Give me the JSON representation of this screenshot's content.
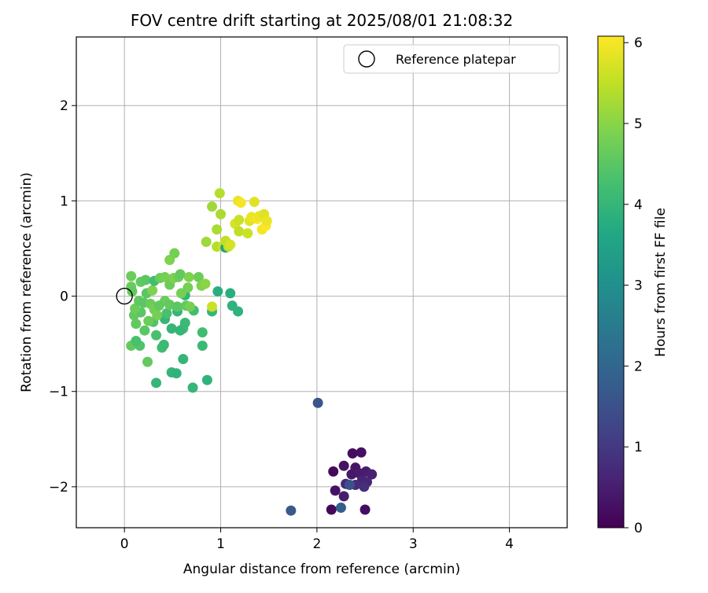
{
  "chart_data": {
    "type": "scatter",
    "title": "FOV centre drift starting at 2025/08/01 21:08:32",
    "xlabel": "Angular distance from reference (arcmin)",
    "ylabel": "Rotation from reference (arcmin)",
    "xlim": [
      -0.5,
      4.6
    ],
    "ylim": [
      -2.43,
      2.72
    ],
    "xticks": [
      0,
      1,
      2,
      3,
      4
    ],
    "yticks": [
      -2,
      -1,
      0,
      1,
      2
    ],
    "grid": true,
    "legend": {
      "position": "top-right",
      "entries": [
        "Reference platepar"
      ]
    },
    "reference_point": {
      "x": 0,
      "y": 0,
      "label": "Reference platepar"
    },
    "colorbar": {
      "label": "Hours from first FF file",
      "colormap": "viridis",
      "range": [
        0,
        6.08
      ],
      "ticks": [
        0,
        1,
        2,
        3,
        4,
        5,
        6
      ]
    },
    "points": [
      {
        "x": 2.37,
        "y": -1.65,
        "c": 0.2
      },
      {
        "x": 2.46,
        "y": -1.64,
        "c": 0.25
      },
      {
        "x": 2.28,
        "y": -1.78,
        "c": 0.3
      },
      {
        "x": 2.4,
        "y": -1.8,
        "c": 0.35
      },
      {
        "x": 2.17,
        "y": -1.84,
        "c": 0.15
      },
      {
        "x": 2.36,
        "y": -1.87,
        "c": 0.4
      },
      {
        "x": 2.44,
        "y": -1.86,
        "c": 0.45
      },
      {
        "x": 2.51,
        "y": -1.84,
        "c": 0.5
      },
      {
        "x": 2.57,
        "y": -1.87,
        "c": 0.55
      },
      {
        "x": 2.47,
        "y": -1.93,
        "c": 0.6
      },
      {
        "x": 2.52,
        "y": -1.95,
        "c": 0.65
      },
      {
        "x": 2.3,
        "y": -1.97,
        "c": 0.7
      },
      {
        "x": 2.4,
        "y": -1.98,
        "c": 0.75
      },
      {
        "x": 2.49,
        "y": -2.0,
        "c": 0.8
      },
      {
        "x": 2.19,
        "y": -2.04,
        "c": 0.3
      },
      {
        "x": 2.28,
        "y": -2.1,
        "c": 0.5
      },
      {
        "x": 2.15,
        "y": -2.24,
        "c": 0.1
      },
      {
        "x": 2.5,
        "y": -2.24,
        "c": 0.2
      },
      {
        "x": 2.34,
        "y": -1.98,
        "c": 1.5
      },
      {
        "x": 2.25,
        "y": -2.22,
        "c": 1.8
      },
      {
        "x": 2.01,
        "y": -1.12,
        "c": 1.6
      },
      {
        "x": 1.73,
        "y": -2.25,
        "c": 1.7
      },
      {
        "x": 0.33,
        "y": -0.91,
        "c": 4.0
      },
      {
        "x": 0.71,
        "y": -0.96,
        "c": 4.0
      },
      {
        "x": 0.86,
        "y": -0.88,
        "c": 3.9
      },
      {
        "x": 0.49,
        "y": -0.8,
        "c": 4.0
      },
      {
        "x": 0.54,
        "y": -0.81,
        "c": 3.9
      },
      {
        "x": 0.61,
        "y": -0.66,
        "c": 4.0
      },
      {
        "x": 0.24,
        "y": -0.69,
        "c": 4.6
      },
      {
        "x": 0.07,
        "y": -0.52,
        "c": 4.6
      },
      {
        "x": 0.16,
        "y": -0.52,
        "c": 4.4
      },
      {
        "x": 0.12,
        "y": -0.47,
        "c": 4.3
      },
      {
        "x": 0.39,
        "y": -0.54,
        "c": 4.2
      },
      {
        "x": 0.41,
        "y": -0.51,
        "c": 4.1
      },
      {
        "x": 0.81,
        "y": -0.52,
        "c": 4.1
      },
      {
        "x": 0.81,
        "y": -0.38,
        "c": 4.2
      },
      {
        "x": 0.33,
        "y": -0.41,
        "c": 4.3
      },
      {
        "x": 0.21,
        "y": -0.36,
        "c": 4.5
      },
      {
        "x": 0.61,
        "y": -0.34,
        "c": 4.2
      },
      {
        "x": 0.49,
        "y": -0.34,
        "c": 4.0
      },
      {
        "x": 0.58,
        "y": -0.36,
        "c": 4.0
      },
      {
        "x": 0.63,
        "y": -0.28,
        "c": 4.1
      },
      {
        "x": 0.42,
        "y": -0.24,
        "c": 4.0
      },
      {
        "x": 0.3,
        "y": -0.27,
        "c": 4.4
      },
      {
        "x": 0.25,
        "y": -0.26,
        "c": 4.7
      },
      {
        "x": 0.12,
        "y": -0.29,
        "c": 4.6
      },
      {
        "x": 0.1,
        "y": -0.2,
        "c": 4.6
      },
      {
        "x": 0.17,
        "y": -0.17,
        "c": 4.5
      },
      {
        "x": 0.34,
        "y": -0.2,
        "c": 4.8
      },
      {
        "x": 0.44,
        "y": -0.18,
        "c": 4.3
      },
      {
        "x": 0.55,
        "y": -0.16,
        "c": 4.0
      },
      {
        "x": 0.72,
        "y": -0.15,
        "c": 4.2
      },
      {
        "x": 0.91,
        "y": -0.16,
        "c": 4.0
      },
      {
        "x": 1.18,
        "y": -0.16,
        "c": 3.9
      },
      {
        "x": 1.12,
        "y": -0.1,
        "c": 3.9
      },
      {
        "x": 0.97,
        "y": 0.05,
        "c": 3.8
      },
      {
        "x": 1.1,
        "y": 0.03,
        "c": 3.8
      },
      {
        "x": 0.63,
        "y": 0.01,
        "c": 4.0
      },
      {
        "x": 0.59,
        "y": 0.03,
        "c": 4.8
      },
      {
        "x": 0.42,
        "y": -0.05,
        "c": 4.7
      },
      {
        "x": 0.47,
        "y": -0.09,
        "c": 4.6
      },
      {
        "x": 0.55,
        "y": -0.11,
        "c": 4.5
      },
      {
        "x": 0.64,
        "y": -0.1,
        "c": 4.6
      },
      {
        "x": 0.68,
        "y": -0.11,
        "c": 4.8
      },
      {
        "x": 0.11,
        "y": -0.13,
        "c": 4.7
      },
      {
        "x": 0.15,
        "y": -0.05,
        "c": 4.6
      },
      {
        "x": 0.2,
        "y": -0.07,
        "c": 4.5
      },
      {
        "x": 0.27,
        "y": -0.08,
        "c": 4.7
      },
      {
        "x": 0.31,
        "y": -0.14,
        "c": 4.8
      },
      {
        "x": 0.36,
        "y": -0.1,
        "c": 4.6
      },
      {
        "x": 0.23,
        "y": 0.03,
        "c": 4.5
      },
      {
        "x": 0.29,
        "y": 0.06,
        "c": 4.9
      },
      {
        "x": 0.07,
        "y": 0.1,
        "c": 4.7
      },
      {
        "x": 0.08,
        "y": 0.05,
        "c": 4.6
      },
      {
        "x": 0.07,
        "y": 0.21,
        "c": 4.7
      },
      {
        "x": 0.17,
        "y": 0.15,
        "c": 4.6
      },
      {
        "x": 0.22,
        "y": 0.17,
        "c": 4.5
      },
      {
        "x": 0.31,
        "y": 0.16,
        "c": 4.2
      },
      {
        "x": 0.37,
        "y": 0.19,
        "c": 4.7
      },
      {
        "x": 0.42,
        "y": 0.2,
        "c": 4.8
      },
      {
        "x": 0.47,
        "y": 0.12,
        "c": 4.7
      },
      {
        "x": 0.51,
        "y": 0.19,
        "c": 4.9
      },
      {
        "x": 0.56,
        "y": 0.2,
        "c": 4.7
      },
      {
        "x": 0.58,
        "y": 0.23,
        "c": 4.6
      },
      {
        "x": 0.66,
        "y": 0.09,
        "c": 4.8
      },
      {
        "x": 0.67,
        "y": 0.2,
        "c": 4.9
      },
      {
        "x": 0.77,
        "y": 0.2,
        "c": 4.7
      },
      {
        "x": 0.8,
        "y": 0.11,
        "c": 4.9
      },
      {
        "x": 0.84,
        "y": 0.13,
        "c": 5.0
      },
      {
        "x": 0.47,
        "y": 0.38,
        "c": 4.9
      },
      {
        "x": 0.52,
        "y": 0.45,
        "c": 4.8
      },
      {
        "x": 0.91,
        "y": -0.11,
        "c": 5.6
      },
      {
        "x": 0.85,
        "y": 0.57,
        "c": 5.2
      },
      {
        "x": 0.96,
        "y": 0.52,
        "c": 5.4
      },
      {
        "x": 0.96,
        "y": 0.7,
        "c": 5.3
      },
      {
        "x": 1.02,
        "y": 0.52,
        "c": 5.6
      },
      {
        "x": 1.05,
        "y": 0.51,
        "c": 3.5
      },
      {
        "x": 1.08,
        "y": 0.52,
        "c": 5.5
      },
      {
        "x": 1.05,
        "y": 0.58,
        "c": 5.5
      },
      {
        "x": 1.1,
        "y": 0.54,
        "c": 5.7
      },
      {
        "x": 0.91,
        "y": 0.94,
        "c": 5.2
      },
      {
        "x": 1.0,
        "y": 0.86,
        "c": 5.3
      },
      {
        "x": 0.99,
        "y": 1.08,
        "c": 5.4
      },
      {
        "x": 1.15,
        "y": 0.76,
        "c": 5.7
      },
      {
        "x": 1.19,
        "y": 0.8,
        "c": 5.6
      },
      {
        "x": 1.19,
        "y": 0.68,
        "c": 5.5
      },
      {
        "x": 1.18,
        "y": 1.0,
        "c": 5.9
      },
      {
        "x": 1.21,
        "y": 0.98,
        "c": 6.0
      },
      {
        "x": 1.28,
        "y": 0.66,
        "c": 5.6
      },
      {
        "x": 1.3,
        "y": 0.79,
        "c": 5.8
      },
      {
        "x": 1.32,
        "y": 0.83,
        "c": 5.9
      },
      {
        "x": 1.35,
        "y": 0.99,
        "c": 5.8
      },
      {
        "x": 1.38,
        "y": 0.81,
        "c": 6.0
      },
      {
        "x": 1.4,
        "y": 0.84,
        "c": 5.9
      },
      {
        "x": 1.43,
        "y": 0.7,
        "c": 6.0
      },
      {
        "x": 1.45,
        "y": 0.86,
        "c": 5.8
      },
      {
        "x": 1.47,
        "y": 0.74,
        "c": 6.05
      },
      {
        "x": 1.48,
        "y": 0.79,
        "c": 5.9
      }
    ]
  }
}
